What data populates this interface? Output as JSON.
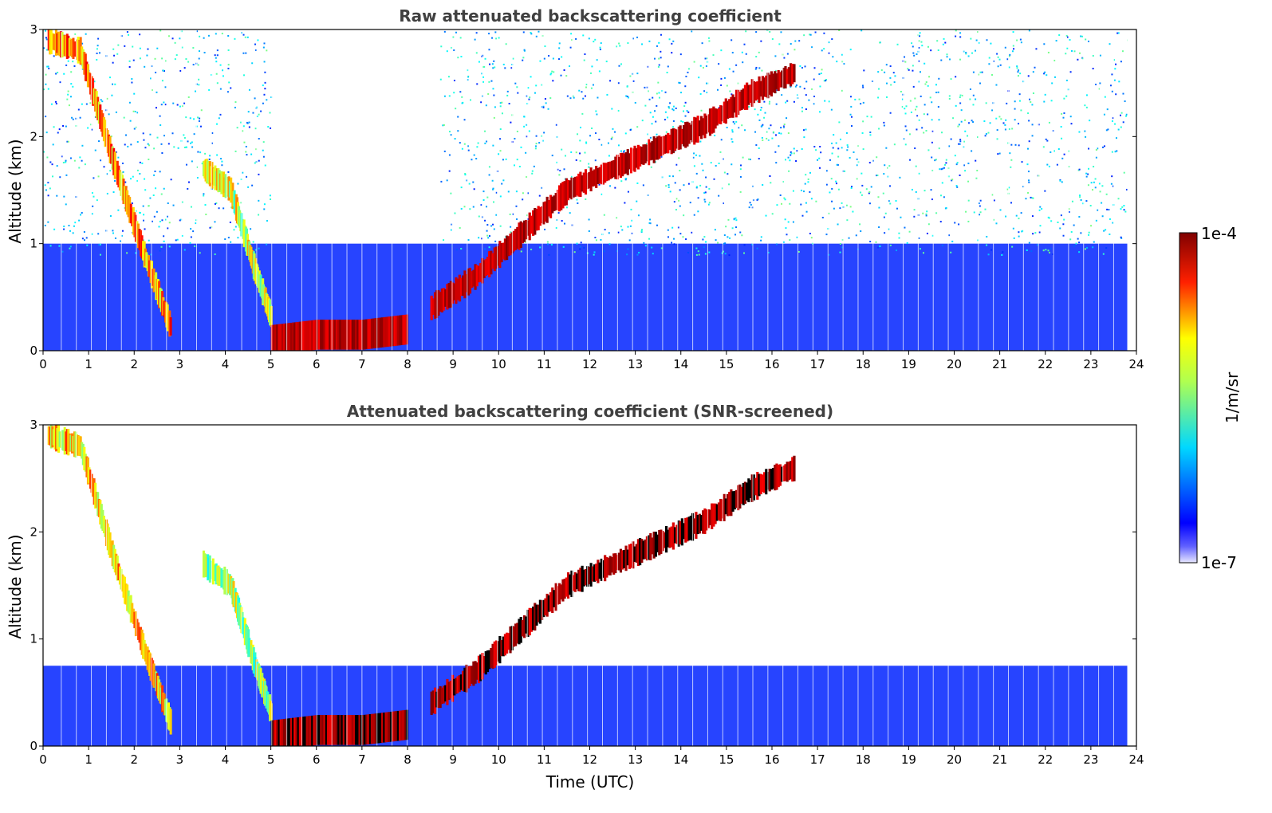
{
  "chart_data": [
    {
      "type": "heatmap",
      "title": "Raw attenuated backscattering coefficient",
      "xlabel": "",
      "ylabel": "Altitude (km)",
      "xlim": [
        0,
        24
      ],
      "ylim": [
        0,
        3
      ],
      "x_ticks": [
        0,
        1,
        2,
        3,
        4,
        5,
        6,
        7,
        8,
        9,
        10,
        11,
        12,
        13,
        14,
        15,
        16,
        17,
        18,
        19,
        20,
        21,
        22,
        23,
        24
      ],
      "y_ticks": [
        0,
        1,
        2,
        3
      ],
      "features": [
        {
          "kind": "cloud_layer",
          "points": [
            [
              0.1,
              2.9
            ],
            [
              0.8,
              2.8
            ],
            [
              1.5,
              1.8
            ],
            [
              2.2,
              0.9
            ],
            [
              2.8,
              0.2
            ]
          ],
          "intensity": 0.75
        },
        {
          "kind": "cloud_layer",
          "points": [
            [
              3.5,
              1.7
            ],
            [
              4.1,
              1.5
            ],
            [
              4.6,
              0.8
            ],
            [
              5.0,
              0.3
            ]
          ],
          "intensity": 0.6
        },
        {
          "kind": "boundary_layer",
          "points": [
            [
              5.0,
              0.1
            ],
            [
              6.0,
              0.15
            ],
            [
              7.0,
              0.15
            ],
            [
              8.0,
              0.2
            ]
          ],
          "intensity": 0.95
        },
        {
          "kind": "cloud_layer",
          "points": [
            [
              8.5,
              0.4
            ],
            [
              9.5,
              0.7
            ],
            [
              10.5,
              1.1
            ],
            [
              11.5,
              1.5
            ],
            [
              12.5,
              1.7
            ],
            [
              13.5,
              1.9
            ],
            [
              14.5,
              2.1
            ],
            [
              15.5,
              2.4
            ],
            [
              16.5,
              2.6
            ]
          ],
          "intensity": 0.95
        }
      ]
    },
    {
      "type": "heatmap",
      "title": "Attenuated backscattering coefficient (SNR-screened)",
      "xlabel": "Time (UTC)",
      "ylabel": "Altitude (km)",
      "xlim": [
        0,
        24
      ],
      "ylim": [
        0,
        3
      ],
      "x_ticks": [
        0,
        1,
        2,
        3,
        4,
        5,
        6,
        7,
        8,
        9,
        10,
        11,
        12,
        13,
        14,
        15,
        16,
        17,
        18,
        19,
        20,
        21,
        22,
        23,
        24
      ],
      "y_ticks": [
        0,
        1,
        2,
        3
      ],
      "features": [
        {
          "kind": "cloud_layer",
          "points": [
            [
              0.1,
              2.9
            ],
            [
              0.8,
              2.8
            ],
            [
              1.5,
              1.8
            ],
            [
              2.2,
              0.9
            ],
            [
              2.8,
              0.2
            ]
          ],
          "intensity": 0.7
        },
        {
          "kind": "cloud_layer",
          "points": [
            [
              3.5,
              1.7
            ],
            [
              4.1,
              1.5
            ],
            [
              4.6,
              0.8
            ],
            [
              5.0,
              0.3
            ]
          ],
          "intensity": 0.55
        },
        {
          "kind": "boundary_layer",
          "points": [
            [
              5.0,
              0.1
            ],
            [
              6.0,
              0.15
            ],
            [
              7.0,
              0.15
            ],
            [
              8.0,
              0.2
            ]
          ],
          "intensity": 0.95
        },
        {
          "kind": "cloud_layer",
          "points": [
            [
              8.5,
              0.4
            ],
            [
              9.5,
              0.7
            ],
            [
              10.5,
              1.1
            ],
            [
              11.5,
              1.5
            ],
            [
              12.5,
              1.7
            ],
            [
              13.5,
              1.9
            ],
            [
              14.5,
              2.1
            ],
            [
              15.5,
              2.4
            ],
            [
              16.5,
              2.6
            ]
          ],
          "intensity": 1.0
        }
      ]
    }
  ],
  "colorbar": {
    "label": "1/m/sr",
    "max_label": "1e-4",
    "min_label": "1e-7",
    "colormap": "jet",
    "stops": [
      "#ffffff",
      "#0000ff",
      "#00ffff",
      "#ffff00",
      "#ff0000",
      "#800000"
    ]
  }
}
